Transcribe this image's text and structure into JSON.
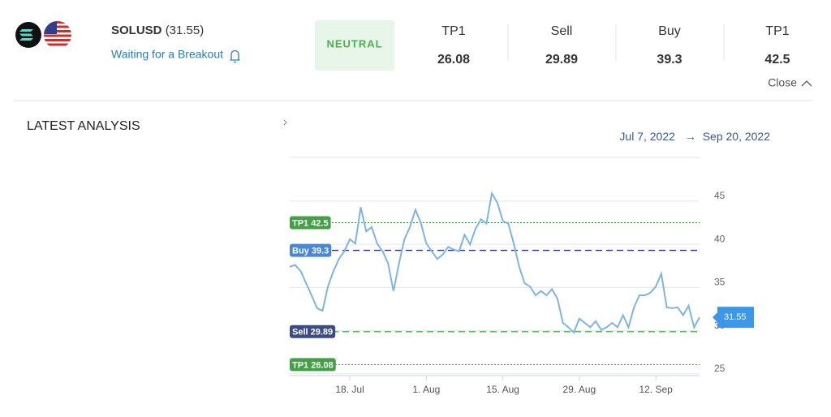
{
  "header": {
    "symbol": "SOLUSD",
    "price_text": "(31.55)",
    "status": "Waiting for a Breakout",
    "signal": "NEUTRAL",
    "columns": [
      {
        "title": "TP1",
        "value": 26.08
      },
      {
        "title": "Sell",
        "value": 29.89
      },
      {
        "title": "Buy",
        "value": 39.3
      },
      {
        "title": "TP1",
        "value": 42.5
      }
    ],
    "close": "Close"
  },
  "section_title": "LATEST ANALYSIS",
  "range": {
    "from": "Jul 7, 2022",
    "arrow": "→",
    "to": "Sep 20, 2022"
  },
  "chart_data": {
    "type": "line",
    "color": "#80b4e0",
    "x": [
      "2022-07-07",
      "2022-07-08",
      "2022-07-09",
      "2022-07-10",
      "2022-07-11",
      "2022-07-12",
      "2022-07-13",
      "2022-07-14",
      "2022-07-15",
      "2022-07-16",
      "2022-07-17",
      "2022-07-18",
      "2022-07-19",
      "2022-07-20",
      "2022-07-21",
      "2022-07-22",
      "2022-07-23",
      "2022-07-24",
      "2022-07-25",
      "2022-07-26",
      "2022-07-27",
      "2022-07-28",
      "2022-07-29",
      "2022-07-30",
      "2022-07-31",
      "2022-08-01",
      "2022-08-02",
      "2022-08-03",
      "2022-08-04",
      "2022-08-05",
      "2022-08-06",
      "2022-08-07",
      "2022-08-08",
      "2022-08-09",
      "2022-08-10",
      "2022-08-11",
      "2022-08-12",
      "2022-08-13",
      "2022-08-14",
      "2022-08-15",
      "2022-08-16",
      "2022-08-17",
      "2022-08-18",
      "2022-08-19",
      "2022-08-20",
      "2022-08-21",
      "2022-08-22",
      "2022-08-23",
      "2022-08-24",
      "2022-08-25",
      "2022-08-26",
      "2022-08-27",
      "2022-08-28",
      "2022-08-29",
      "2022-08-30",
      "2022-08-31",
      "2022-09-01",
      "2022-09-02",
      "2022-09-03",
      "2022-09-04",
      "2022-09-05",
      "2022-09-06",
      "2022-09-07",
      "2022-09-08",
      "2022-09-09",
      "2022-09-10",
      "2022-09-11",
      "2022-09-12",
      "2022-09-13",
      "2022-09-14",
      "2022-09-15",
      "2022-09-16",
      "2022-09-17",
      "2022-09-18",
      "2022-09-19",
      "2022-09-20"
    ],
    "values": [
      37.4,
      37.6,
      36.9,
      35.5,
      34.1,
      32.6,
      32.3,
      35.1,
      36.9,
      38.3,
      39.2,
      40.6,
      40.1,
      44.3,
      41.5,
      42,
      40.1,
      39.2,
      37.8,
      34.6,
      37.8,
      40.6,
      42,
      44,
      42.5,
      40.1,
      39.2,
      38.3,
      38.8,
      39.7,
      39.4,
      39.2,
      41.1,
      40,
      41.8,
      42.9,
      42.4,
      45.9,
      44.8,
      42.7,
      42.4,
      40.1,
      37.4,
      35.5,
      35.1,
      34.1,
      34.6,
      34.1,
      34.8,
      33.7,
      30.9,
      30.4,
      29.8,
      31.4,
      30.9,
      30.4,
      31.1,
      30.1,
      30.4,
      30.9,
      30.4,
      31.8,
      30.4,
      32.7,
      34.1,
      34.1,
      34.4,
      35.1,
      36.6,
      32.7,
      32.6,
      32.7,
      31.8,
      32.9,
      30.4,
      31.55
    ],
    "current_label": "31.55",
    "xlim": [
      "2022-07-07",
      "2022-09-20"
    ],
    "xticks": [
      {
        "value": "2022-07-18",
        "label": "18. Jul"
      },
      {
        "value": "2022-08-01",
        "label": "1. Aug"
      },
      {
        "value": "2022-08-15",
        "label": "15. Aug"
      },
      {
        "value": "2022-08-29",
        "label": "29. Aug"
      },
      {
        "value": "2022-09-12",
        "label": "12. Sep"
      }
    ],
    "ylim": [
      24.8,
      49.5
    ],
    "yticks": [
      25,
      30,
      35,
      40,
      45
    ],
    "grid": true,
    "levels": [
      {
        "label": "TP1 42.5",
        "value": 42.5,
        "color": "#43a047",
        "line_color": "#2e8b2e",
        "style": "dotted"
      },
      {
        "label": "Buy 39.3",
        "value": 39.3,
        "color": "#4a86d8",
        "line_color": "#27307e",
        "style": "dashed"
      },
      {
        "label": "Sell 29.89",
        "value": 29.89,
        "color": "#3c4a86",
        "line_color": "#4caf50",
        "style": "dashed"
      },
      {
        "label": "TP1 26.08",
        "value": 26.08,
        "color": "#43a047",
        "line_color": "#2e8b2e",
        "style": "dotted"
      }
    ]
  }
}
